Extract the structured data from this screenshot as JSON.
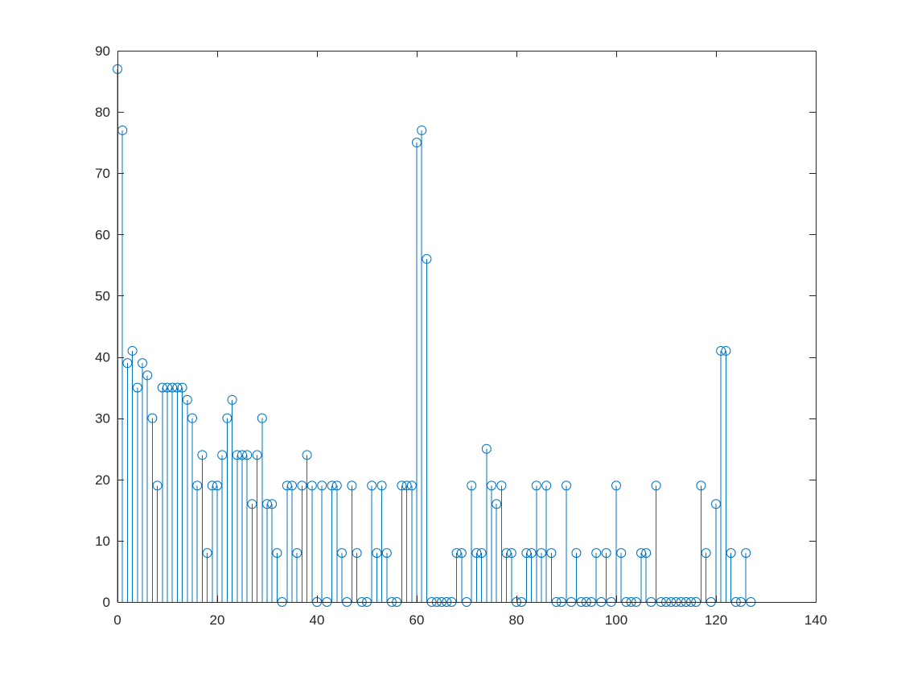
{
  "chart_data": {
    "type": "stem",
    "title": "",
    "xlabel": "",
    "ylabel": "",
    "xlim": [
      0,
      140
    ],
    "ylim": [
      0,
      90
    ],
    "xticks": [
      0,
      20,
      40,
      60,
      80,
      100,
      120,
      140
    ],
    "yticks": [
      0,
      10,
      20,
      30,
      40,
      50,
      60,
      70,
      80,
      90
    ],
    "marker": "circle",
    "color": "#0072BD",
    "grid": false,
    "box": true,
    "x_start": 0,
    "values": [
      87,
      77,
      39,
      41,
      35,
      39,
      37,
      30,
      19,
      35,
      35,
      35,
      35,
      35,
      33,
      30,
      19,
      24,
      8,
      19,
      19,
      24,
      30,
      33,
      24,
      24,
      24,
      16,
      24,
      30,
      16,
      16,
      8,
      0,
      19,
      19,
      8,
      19,
      24,
      19,
      0,
      19,
      0,
      19,
      19,
      8,
      0,
      19,
      8,
      0,
      0,
      19,
      8,
      19,
      8,
      0,
      0,
      19,
      19,
      19,
      75,
      77,
      56,
      0,
      0,
      0,
      0,
      0,
      8,
      8,
      0,
      19,
      8,
      8,
      25,
      19,
      16,
      19,
      8,
      8,
      0,
      0,
      8,
      8,
      19,
      8,
      19,
      8,
      0,
      0,
      19,
      0,
      8,
      0,
      0,
      0,
      8,
      0,
      8,
      0,
      19,
      8,
      0,
      0,
      0,
      8,
      8,
      0,
      19,
      0,
      0,
      0,
      0,
      0,
      0,
      0,
      0,
      19,
      8,
      0,
      16,
      41,
      41,
      8,
      0,
      0,
      8,
      0
    ]
  }
}
